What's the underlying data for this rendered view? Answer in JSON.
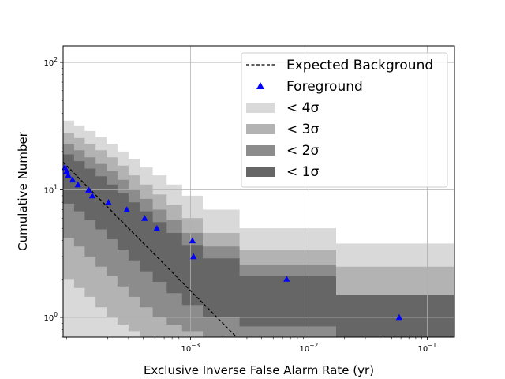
{
  "chart_data": {
    "type": "scatter",
    "xlabel": "Exclusive Inverse False Alarm Rate (yr)",
    "ylabel": "Cumulative Number",
    "xscale": "log",
    "yscale": "log",
    "xlim": [
      8.4e-05,
      0.17
    ],
    "ylim": [
      0.7,
      135
    ],
    "grid": true,
    "legend_position": "top-right",
    "x_tick_labels": [
      {
        "value": 0.001,
        "base": "10",
        "exp": "−3"
      },
      {
        "value": 0.01,
        "base": "10",
        "exp": "−2"
      },
      {
        "value": 0.1,
        "base": "10",
        "exp": "−1"
      }
    ],
    "y_tick_labels": [
      {
        "value": 1,
        "base": "10",
        "exp": "0"
      },
      {
        "value": 10,
        "base": "10",
        "exp": "1"
      },
      {
        "value": 100,
        "base": "10",
        "exp": "2"
      }
    ],
    "series": [
      {
        "name": "Expected Background",
        "style": "dashed-line",
        "color": "#000000",
        "x": [
          8.4e-05,
          0.00245
        ],
        "y": [
          16.5,
          0.7
        ]
      },
      {
        "name": "Foreground",
        "style": "triangle-markers",
        "color": "#0000ff",
        "x": [
          8.7e-05,
          9e-05,
          9.3e-05,
          0.000101,
          0.000112,
          0.000138,
          0.000148,
          0.000203,
          0.00029,
          0.00041,
          0.00052,
          0.00104,
          0.00106,
          0.0065,
          0.058
        ],
        "y": [
          15,
          14,
          13,
          12,
          11,
          10,
          9,
          8,
          7,
          6,
          5,
          4,
          3,
          2,
          1
        ]
      }
    ],
    "bands": [
      {
        "name": "< 4σ",
        "color": "#d9d9d9",
        "x": [
          8.4e-05,
          0.000104,
          0.000128,
          0.000158,
          0.000196,
          0.000242,
          0.0003,
          0.000374,
          0.00048,
          0.00063,
          0.00085,
          0.00127,
          0.0026,
          0.017,
          0.17
        ],
        "upper": [
          35,
          32,
          29,
          26,
          23,
          20,
          17.5,
          15,
          13,
          11,
          9,
          7,
          5,
          3.8,
          2.5
        ],
        "lower": [
          0.7,
          0.7,
          0.7,
          0.7,
          0.7,
          0.7,
          0.7,
          0.7,
          0.7,
          0.7,
          0.7,
          0.7,
          0.7,
          0.7,
          0.7
        ]
      },
      {
        "name": "< 3σ",
        "color": "#b3b3b3",
        "x": [
          8.4e-05,
          0.000104,
          0.000128,
          0.000158,
          0.000196,
          0.000242,
          0.0003,
          0.000374,
          0.00048,
          0.00063,
          0.00085,
          0.00127,
          0.0026,
          0.017,
          0.17
        ],
        "upper": [
          28,
          25.5,
          23,
          20.5,
          18,
          15.5,
          13,
          11,
          9.2,
          7.6,
          6,
          4.6,
          3.4,
          2.5,
          2.5
        ],
        "lower": [
          2.0,
          1.7,
          1.45,
          1.2,
          1.0,
          0.88,
          0.78,
          0.7,
          0.7,
          0.7,
          0.7,
          0.7,
          0.7,
          0.7,
          0.7
        ]
      },
      {
        "name": "< 2σ",
        "color": "#8c8c8c",
        "x": [
          8.4e-05,
          0.000104,
          0.000128,
          0.000158,
          0.000196,
          0.000242,
          0.0003,
          0.000374,
          0.00048,
          0.00063,
          0.00085,
          0.00127,
          0.0026,
          0.017,
          0.17
        ],
        "upper": [
          23,
          20.5,
          18,
          16,
          14,
          12,
          10,
          8.5,
          7,
          5.8,
          4.6,
          3.6,
          2.6,
          1.5,
          1.5
        ],
        "lower": [
          4.2,
          3.6,
          3.0,
          2.5,
          2.1,
          1.75,
          1.45,
          1.2,
          1.0,
          0.88,
          0.78,
          0.7,
          0.7,
          0.7,
          0.7
        ]
      },
      {
        "name": "< 1σ",
        "color": "#666666",
        "x": [
          8.4e-05,
          0.000104,
          0.000128,
          0.000158,
          0.000196,
          0.000242,
          0.0003,
          0.000374,
          0.00048,
          0.00063,
          0.00085,
          0.00127,
          0.0026,
          0.017,
          0.17
        ],
        "upper": [
          19,
          16.8,
          14.7,
          12.8,
          11,
          9.4,
          8,
          6.8,
          5.6,
          4.6,
          3.7,
          2.9,
          2.1,
          1.5,
          1.5
        ],
        "lower": [
          7.8,
          6.8,
          5.8,
          4.9,
          4.1,
          3.4,
          2.8,
          2.3,
          1.9,
          1.55,
          1.25,
          1.0,
          0.85,
          0.7,
          0.7
        ]
      }
    ],
    "legend": [
      {
        "label": "Expected Background",
        "kind": "dashed-line",
        "color": "#000000"
      },
      {
        "label": "Foreground",
        "kind": "triangle",
        "color": "#0000ff"
      },
      {
        "label": "< 4σ",
        "kind": "patch",
        "color": "#d9d9d9"
      },
      {
        "label": "< 3σ",
        "kind": "patch",
        "color": "#b3b3b3"
      },
      {
        "label": "< 2σ",
        "kind": "patch",
        "color": "#8c8c8c"
      },
      {
        "label": "< 1σ",
        "kind": "patch",
        "color": "#666666"
      }
    ]
  }
}
